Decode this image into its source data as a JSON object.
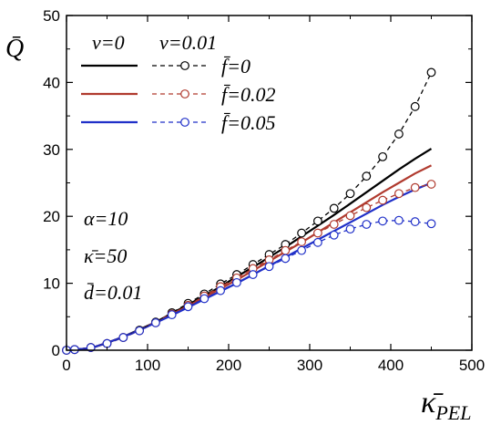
{
  "chart_data": {
    "type": "line",
    "title": "",
    "xlabel": "κ̄",
    "xlabel_sub": "PEL",
    "ylabel": "Q̄",
    "xlim": [
      0,
      500
    ],
    "ylim": [
      0,
      50
    ],
    "x_ticks": [
      "0",
      "100",
      "200",
      "300",
      "400",
      "500"
    ],
    "y_ticks": [
      "0",
      "10",
      "20",
      "30",
      "40",
      "50"
    ],
    "grid": false,
    "legend": {
      "placement": "top-left",
      "header_solid": "ν=0",
      "header_dashed": "ν=0.01",
      "rows": [
        {
          "label": "f̄=0",
          "color": "#000000"
        },
        {
          "label": "f̄=0.02",
          "color": "#b03a2e"
        },
        {
          "label": "f̄=0.05",
          "color": "#1f2fc8"
        }
      ]
    },
    "annotations": [
      "α=10",
      "κ̄=50",
      "d̄=0.01"
    ],
    "series": [
      {
        "name": "ν=0, f̄=0",
        "color": "#000000",
        "style": "solid",
        "x": [
          0,
          30,
          50,
          70,
          90,
          110,
          130,
          150,
          170,
          190,
          210,
          230,
          250,
          270,
          290,
          310,
          330,
          350,
          370,
          390,
          410,
          430,
          450
        ],
        "y": [
          0,
          0.3,
          1.1,
          2.0,
          3.1,
          4.2,
          5.5,
          6.8,
          8.1,
          9.5,
          11.0,
          12.4,
          13.9,
          15.4,
          17.0,
          18.6,
          20.2,
          21.9,
          23.6,
          25.3,
          27.0,
          28.6,
          30.1
        ]
      },
      {
        "name": "ν=0, f̄=0.02",
        "color": "#b03a2e",
        "style": "solid",
        "x": [
          0,
          30,
          50,
          70,
          90,
          110,
          130,
          150,
          170,
          190,
          210,
          230,
          250,
          270,
          290,
          310,
          330,
          350,
          370,
          390,
          410,
          430,
          450
        ],
        "y": [
          0,
          0.3,
          1.1,
          2.0,
          3.0,
          4.2,
          5.4,
          6.6,
          7.9,
          9.2,
          10.5,
          11.9,
          13.3,
          14.7,
          16.1,
          17.6,
          19.1,
          20.6,
          22.1,
          23.6,
          25.0,
          26.4,
          27.6
        ]
      },
      {
        "name": "ν=0, f̄=0.05",
        "color": "#1f2fc8",
        "style": "solid",
        "x": [
          0,
          30,
          50,
          70,
          90,
          110,
          130,
          150,
          170,
          190,
          210,
          230,
          250,
          270,
          290,
          310,
          330,
          350,
          370,
          390,
          410,
          430,
          450
        ],
        "y": [
          0,
          0.3,
          1.1,
          2.0,
          3.0,
          4.1,
          5.2,
          6.4,
          7.6,
          8.8,
          10.0,
          11.3,
          12.6,
          13.9,
          15.2,
          16.5,
          17.8,
          19.1,
          20.4,
          21.7,
          22.9,
          24.0,
          25.0
        ]
      },
      {
        "name": "ν=0.01, f̄=0",
        "color": "#000000",
        "style": "dashed",
        "marker": "circle",
        "x": [
          0,
          10,
          30,
          50,
          70,
          90,
          110,
          130,
          150,
          170,
          190,
          210,
          230,
          250,
          270,
          290,
          310,
          330,
          350,
          370,
          390,
          410,
          430,
          450
        ],
        "y": [
          0,
          0.1,
          0.4,
          1.0,
          1.9,
          3.0,
          4.2,
          5.6,
          7.0,
          8.4,
          9.9,
          11.3,
          12.8,
          14.3,
          15.8,
          17.5,
          19.3,
          21.2,
          23.4,
          26.0,
          28.9,
          32.3,
          36.4,
          41.5
        ]
      },
      {
        "name": "ν=0.01, f̄=0.02",
        "color": "#b03a2e",
        "style": "dashed",
        "marker": "circle",
        "x": [
          0,
          10,
          30,
          50,
          70,
          90,
          110,
          130,
          150,
          170,
          190,
          210,
          230,
          250,
          270,
          290,
          310,
          330,
          350,
          370,
          390,
          410,
          430,
          450
        ],
        "y": [
          0,
          0.1,
          0.4,
          1.0,
          1.9,
          2.9,
          4.1,
          5.4,
          6.7,
          8.1,
          9.5,
          10.8,
          12.2,
          13.5,
          14.9,
          16.2,
          17.5,
          18.8,
          20.1,
          21.3,
          22.4,
          23.4,
          24.3,
          24.8
        ]
      },
      {
        "name": "ν=0.01, f̄=0.05",
        "color": "#1f2fc8",
        "style": "dashed",
        "marker": "circle",
        "x": [
          0,
          10,
          30,
          50,
          70,
          90,
          110,
          130,
          150,
          170,
          190,
          210,
          230,
          250,
          270,
          290,
          310,
          330,
          350,
          370,
          390,
          410,
          430,
          450
        ],
        "y": [
          0,
          0.1,
          0.4,
          1.0,
          1.9,
          2.9,
          4.1,
          5.3,
          6.5,
          7.7,
          8.9,
          10.1,
          11.3,
          12.5,
          13.7,
          14.9,
          16.1,
          17.2,
          18.1,
          18.8,
          19.3,
          19.4,
          19.2,
          18.9
        ]
      }
    ]
  }
}
